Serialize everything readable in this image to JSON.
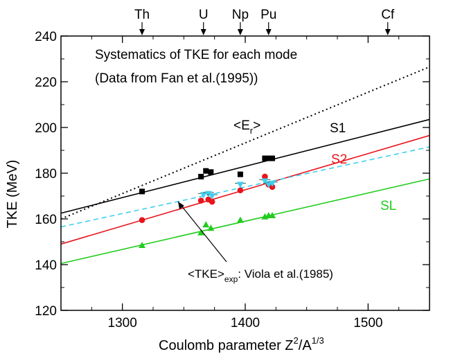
{
  "chart_data": {
    "type": "scatter",
    "title_line1": "Systematics of TKE for each mode",
    "title_line2": "(Data from Fan et al.(1995))",
    "xlabel": {
      "main": "Coulomb parameter Z",
      "sup1": "2",
      "mid": "/A",
      "sup2": "1/3"
    },
    "ylabel": "TKE (MeV)",
    "xlim": [
      1250,
      1550
    ],
    "ylim": [
      120,
      240
    ],
    "xticks": [
      1300,
      1400,
      1500
    ],
    "yticks": [
      120,
      140,
      160,
      180,
      200,
      220,
      240
    ],
    "grid": false,
    "elements": [
      {
        "name": "Th",
        "x": 1316
      },
      {
        "name": "U",
        "x": 1366
      },
      {
        "name": "Np",
        "x": 1396
      },
      {
        "name": "Pu",
        "x": 1419
      },
      {
        "name": "Cf",
        "x": 1516
      }
    ],
    "series": [
      {
        "name": "S1",
        "color": "#000000",
        "marker": "square",
        "fit": [
          [
            1250,
            162.5
          ],
          [
            1550,
            203.5
          ]
        ],
        "points": [
          [
            1316,
            172
          ],
          [
            1364,
            178.5
          ],
          [
            1368,
            181
          ],
          [
            1372,
            180.5
          ],
          [
            1396,
            179.5
          ],
          [
            1416,
            186.5
          ],
          [
            1419,
            186.5
          ],
          [
            1422,
            186.5
          ]
        ]
      },
      {
        "name": "S2",
        "color": "#e8141c",
        "marker": "circle",
        "fit": [
          [
            1250,
            149
          ],
          [
            1550,
            196.5
          ]
        ],
        "points": [
          [
            1316,
            159.5
          ],
          [
            1364,
            168
          ],
          [
            1370,
            168.5
          ],
          [
            1373,
            167.5
          ],
          [
            1396,
            172.5
          ],
          [
            1416,
            178.5
          ],
          [
            1419,
            175
          ],
          [
            1422,
            174
          ]
        ]
      },
      {
        "name": "SL",
        "color": "#22cc1e",
        "marker": "triangle-up",
        "fit": [
          [
            1250,
            140.5
          ],
          [
            1550,
            177.5
          ]
        ],
        "points": [
          [
            1316,
            148.5
          ],
          [
            1364,
            154
          ],
          [
            1368,
            157.5
          ],
          [
            1372,
            156
          ],
          [
            1396,
            159.5
          ],
          [
            1416,
            161
          ],
          [
            1419,
            161.5
          ],
          [
            1422,
            161.5
          ]
        ]
      },
      {
        "name": "<TKE>exp",
        "color": "#3cd0f0",
        "marker": "triangle-down",
        "dashed": true,
        "fit": [
          [
            1250,
            156.5
          ],
          [
            1550,
            191.5
          ]
        ],
        "points": [
          [
            1366,
            170.5
          ],
          [
            1370,
            171
          ],
          [
            1373,
            170
          ],
          [
            1396,
            175
          ],
          [
            1416,
            176.5
          ],
          [
            1419,
            175
          ],
          [
            1422,
            175.5
          ]
        ]
      },
      {
        "name": "<Er>",
        "color": "#000000",
        "dotted": true,
        "fit": [
          [
            1250,
            160
          ],
          [
            1550,
            226.5
          ]
        ],
        "points": []
      }
    ],
    "annotations": {
      "s1": "S1",
      "s2": "S2",
      "sl": "SL",
      "er_main": "<E",
      "er_sub": "r",
      "er_close": ">",
      "viola_main": "<TKE>",
      "viola_sub": "exp",
      "viola_rest": ": Viola et al.(1985)"
    }
  }
}
